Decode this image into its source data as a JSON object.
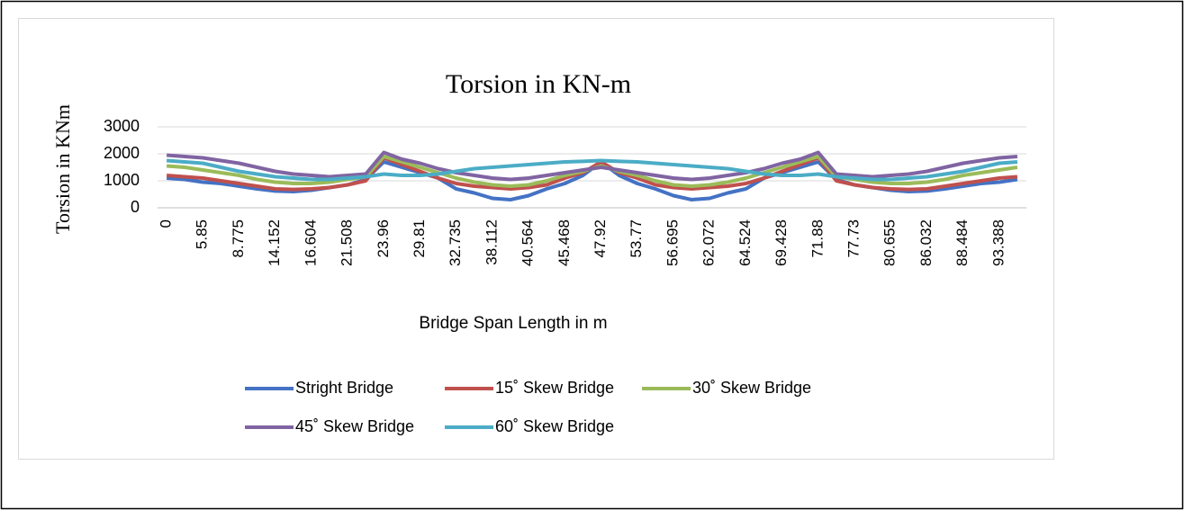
{
  "chart_data": {
    "type": "line",
    "title": "Torsion in KN-m",
    "x_label": "Bridge Span Length in m",
    "y_label": "Torsion in KNm",
    "categories": [
      "0",
      null,
      "5.85",
      null,
      "8.775",
      null,
      "14.152",
      null,
      "16.604",
      null,
      "21.508",
      null,
      "23.96",
      null,
      "29.81",
      null,
      "32.735",
      null,
      "38.112",
      null,
      "40.564",
      null,
      "45.468",
      null,
      "47.92",
      null,
      "53.77",
      null,
      "56.695",
      null,
      "62.072",
      null,
      "64.524",
      null,
      "69.428",
      null,
      "71.88",
      null,
      "77.73",
      null,
      "80.655",
      null,
      "86.032",
      null,
      "88.484",
      null,
      "93.388",
      null
    ],
    "ylim": [
      0,
      3000
    ],
    "yticks": [
      0,
      1000,
      2000,
      3000
    ],
    "grid": true,
    "legend": "bottom",
    "series": [
      {
        "name": "Stright Bridge",
        "color": "#4472c4",
        "values": [
          1100,
          1050,
          950,
          900,
          800,
          700,
          620,
          600,
          650,
          750,
          850,
          1050,
          1700,
          1500,
          1300,
          1100,
          700,
          550,
          350,
          300,
          450,
          700,
          900,
          1200,
          1700,
          1200,
          900,
          700,
          450,
          300,
          350,
          550,
          700,
          1100,
          1300,
          1500,
          1700,
          1050,
          850,
          750,
          650,
          600,
          620,
          700,
          800,
          900,
          950,
          1050
        ]
      },
      {
        "name": "15˚ Skew Bridge",
        "color": "#c0504d",
        "values": [
          1200,
          1150,
          1100,
          1000,
          900,
          800,
          700,
          680,
          700,
          750,
          850,
          1000,
          1850,
          1600,
          1350,
          1100,
          900,
          800,
          750,
          700,
          750,
          850,
          1100,
          1300,
          1700,
          1300,
          1100,
          850,
          750,
          700,
          750,
          800,
          900,
          1100,
          1350,
          1600,
          1850,
          1000,
          850,
          750,
          700,
          680,
          700,
          800,
          900,
          1000,
          1100,
          1150
        ]
      },
      {
        "name": "30˚ Skew Bridge",
        "color": "#9bbb59",
        "values": [
          1550,
          1500,
          1400,
          1300,
          1200,
          1050,
          950,
          900,
          900,
          950,
          1050,
          1150,
          1900,
          1700,
          1500,
          1300,
          1100,
          950,
          850,
          800,
          850,
          1000,
          1200,
          1350,
          1550,
          1350,
          1200,
          1000,
          850,
          800,
          850,
          950,
          1100,
          1300,
          1500,
          1700,
          1900,
          1150,
          1050,
          950,
          900,
          900,
          950,
          1050,
          1200,
          1300,
          1400,
          1500
        ]
      },
      {
        "name": "45˚ Skew Bridge",
        "color": "#8064a2",
        "values": [
          1950,
          1900,
          1850,
          1750,
          1650,
          1500,
          1350,
          1250,
          1200,
          1150,
          1200,
          1250,
          2050,
          1800,
          1650,
          1450,
          1300,
          1200,
          1100,
          1050,
          1100,
          1200,
          1300,
          1400,
          1500,
          1400,
          1300,
          1200,
          1100,
          1050,
          1100,
          1200,
          1300,
          1450,
          1650,
          1800,
          2050,
          1250,
          1200,
          1150,
          1200,
          1250,
          1350,
          1500,
          1650,
          1750,
          1850,
          1900
        ]
      },
      {
        "name": "60˚ Skew Bridge",
        "color": "#4bacc6",
        "values": [
          1750,
          1700,
          1650,
          1500,
          1350,
          1250,
          1150,
          1100,
          1050,
          1050,
          1100,
          1150,
          1250,
          1200,
          1200,
          1250,
          1350,
          1450,
          1500,
          1550,
          1600,
          1650,
          1700,
          1720,
          1750,
          1720,
          1700,
          1650,
          1600,
          1550,
          1500,
          1450,
          1350,
          1250,
          1200,
          1200,
          1250,
          1150,
          1100,
          1050,
          1050,
          1100,
          1150,
          1250,
          1350,
          1500,
          1650,
          1700
        ]
      }
    ]
  }
}
